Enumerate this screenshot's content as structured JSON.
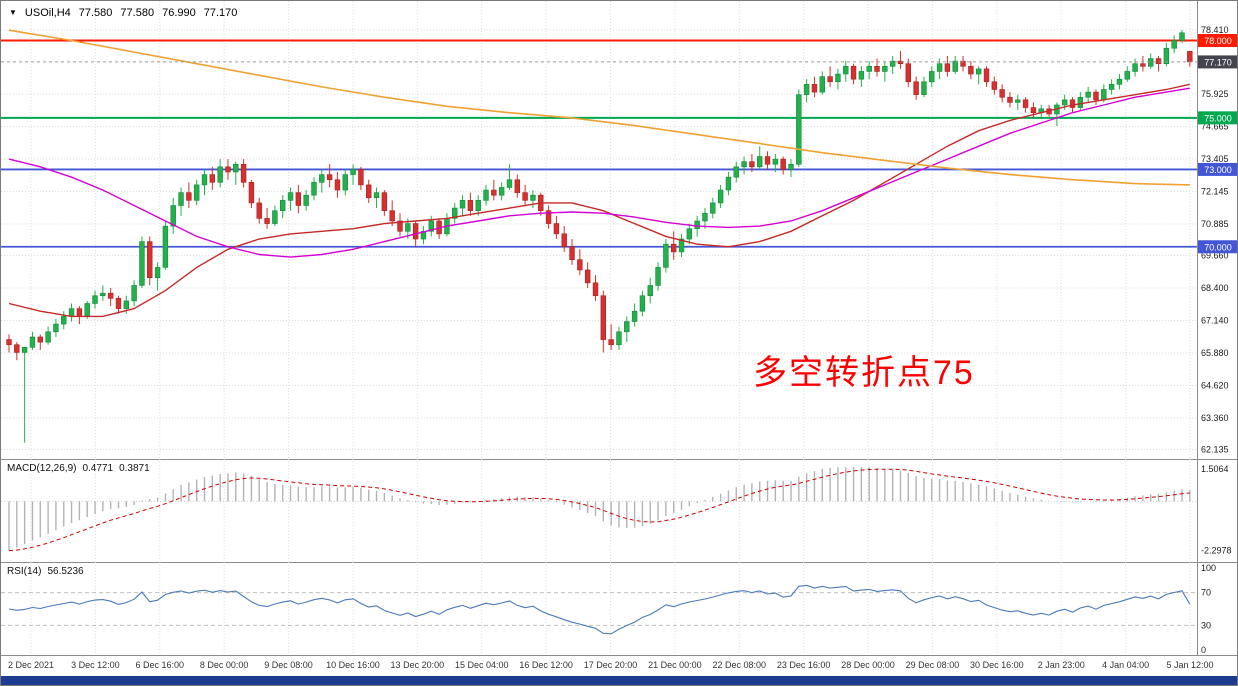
{
  "header": {
    "marker": "▼",
    "symbol_period": "USOil,H4",
    "open": "77.580",
    "high": "77.580",
    "low": "76.990",
    "close": "77.170"
  },
  "panels": {
    "macd": {
      "label": "MACD(12,26,9)",
      "main_value": "0.4771",
      "signal_value": "0.3871"
    },
    "rsi": {
      "label": "RSI(14)",
      "value": "56.5236"
    }
  },
  "axes": {
    "price_ticks": [
      78.41,
      75.925,
      74.665,
      73.405,
      72.145,
      70.885,
      69.66,
      68.4,
      67.14,
      65.88,
      64.62,
      63.36,
      62.135
    ],
    "time_labels": [
      "2 Dec 2021",
      "3 Dec 12:00",
      "6 Dec 16:00",
      "8 Dec 00:00",
      "9 Dec 08:00",
      "10 Dec 16:00",
      "13 Dec 20:00",
      "15 Dec 04:00",
      "16 Dec 12:00",
      "17 Dec 20:00",
      "21 Dec 00:00",
      "22 Dec 08:00",
      "23 Dec 16:00",
      "28 Dec 00:00",
      "29 Dec 08:00",
      "30 Dec 16:00",
      "2 Jan 23:00",
      "4 Jan 04:00",
      "5 Jan 12:00"
    ],
    "macd_ticks": [
      1.5064,
      -2.2978
    ],
    "rsi_ticks": [
      100,
      70,
      30,
      0
    ]
  },
  "chart_data": {
    "type": "candlestick-ohlc",
    "symbol": "USOil",
    "timeframe": "H4",
    "price_range": [
      62.0,
      79.3
    ],
    "up_color": "#25b04c",
    "up_border": "#0e8a3c",
    "down_color": "#d63030",
    "down_border": "#a82020",
    "annotation": {
      "text": "多空转折点75",
      "color": "#ff0000"
    },
    "current_price": {
      "value": 77.17,
      "label": "77.170",
      "badge_color": "#44444e"
    },
    "levels": [
      {
        "value": 78.0,
        "label": "78.000",
        "color": "#ff1a00",
        "width": 2
      },
      {
        "value": 75.0,
        "label": "75.000",
        "color": "#00a84f",
        "width": 2
      },
      {
        "value": 73.0,
        "label": "73.000",
        "color": "#4356d6",
        "width": 1.8
      },
      {
        "value": 70.0,
        "label": "70.000",
        "color": "#4356d6",
        "width": 1.8
      }
    ],
    "macd_hist_color": "#b3b3b3",
    "macd_signal_color": "#cc0000",
    "rsi_color": "#4a7aba",
    "rsi_levels": [
      70,
      30
    ],
    "candles": [
      [
        66.4,
        66.6,
        65.9,
        66.2
      ],
      [
        66.2,
        66.3,
        65.6,
        65.9
      ],
      [
        65.9,
        66.1,
        62.4,
        66.1
      ],
      [
        66.1,
        66.7,
        66.0,
        66.5
      ],
      [
        66.5,
        66.6,
        66.0,
        66.3
      ],
      [
        66.3,
        66.9,
        66.2,
        66.7
      ],
      [
        66.7,
        67.2,
        66.5,
        67.0
      ],
      [
        67.0,
        67.5,
        66.8,
        67.3
      ],
      [
        67.3,
        67.8,
        67.1,
        67.6
      ],
      [
        67.6,
        67.7,
        67.0,
        67.3
      ],
      [
        67.3,
        67.9,
        67.2,
        67.8
      ],
      [
        67.8,
        68.3,
        67.6,
        68.1
      ],
      [
        68.1,
        68.5,
        67.9,
        68.2
      ],
      [
        68.2,
        68.4,
        67.7,
        68.0
      ],
      [
        68.0,
        68.1,
        67.4,
        67.6
      ],
      [
        67.6,
        68.1,
        67.4,
        67.9
      ],
      [
        67.9,
        68.7,
        67.7,
        68.5
      ],
      [
        68.5,
        70.4,
        68.4,
        70.2
      ],
      [
        70.2,
        70.4,
        68.5,
        68.8
      ],
      [
        68.8,
        69.4,
        68.3,
        69.2
      ],
      [
        69.2,
        71.0,
        69.1,
        70.8
      ],
      [
        70.8,
        71.9,
        70.5,
        71.6
      ],
      [
        71.6,
        72.3,
        71.2,
        72.1
      ],
      [
        72.1,
        72.5,
        71.5,
        71.8
      ],
      [
        71.8,
        72.6,
        71.6,
        72.4
      ],
      [
        72.4,
        73.0,
        72.0,
        72.8
      ],
      [
        72.8,
        73.1,
        72.2,
        72.5
      ],
      [
        72.5,
        73.4,
        72.3,
        73.1
      ],
      [
        73.1,
        73.4,
        72.6,
        72.9
      ],
      [
        72.9,
        73.3,
        72.4,
        73.2
      ],
      [
        73.2,
        73.4,
        72.3,
        72.5
      ],
      [
        72.5,
        72.6,
        71.5,
        71.7
      ],
      [
        71.7,
        71.9,
        70.9,
        71.1
      ],
      [
        71.1,
        71.5,
        70.7,
        70.9
      ],
      [
        70.9,
        71.6,
        70.8,
        71.4
      ],
      [
        71.4,
        72.0,
        71.1,
        71.8
      ],
      [
        71.8,
        72.3,
        71.4,
        72.1
      ],
      [
        72.1,
        72.4,
        71.3,
        71.6
      ],
      [
        71.6,
        72.2,
        71.4,
        72.0
      ],
      [
        72.0,
        72.7,
        71.8,
        72.5
      ],
      [
        72.5,
        73.0,
        72.1,
        72.8
      ],
      [
        72.8,
        73.2,
        72.3,
        72.6
      ],
      [
        72.6,
        72.9,
        71.9,
        72.2
      ],
      [
        72.2,
        73.0,
        72.0,
        72.8
      ],
      [
        72.8,
        73.2,
        72.4,
        73.0
      ],
      [
        73.0,
        73.1,
        72.2,
        72.4
      ],
      [
        72.4,
        72.6,
        71.7,
        71.9
      ],
      [
        71.9,
        72.3,
        71.5,
        72.1
      ],
      [
        72.1,
        72.2,
        71.2,
        71.4
      ],
      [
        71.4,
        71.8,
        70.8,
        71.0
      ],
      [
        71.0,
        71.3,
        70.4,
        70.6
      ],
      [
        70.6,
        71.1,
        70.3,
        70.9
      ],
      [
        70.9,
        71.0,
        70.0,
        70.3
      ],
      [
        70.3,
        70.8,
        70.1,
        70.6
      ],
      [
        70.6,
        71.2,
        70.4,
        71.0
      ],
      [
        71.0,
        71.1,
        70.3,
        70.5
      ],
      [
        70.5,
        71.3,
        70.4,
        71.1
      ],
      [
        71.1,
        71.7,
        70.9,
        71.5
      ],
      [
        71.5,
        72.0,
        71.2,
        71.8
      ],
      [
        71.8,
        72.1,
        71.2,
        71.4
      ],
      [
        71.4,
        72.0,
        71.2,
        71.8
      ],
      [
        71.8,
        72.4,
        71.6,
        72.2
      ],
      [
        72.2,
        72.6,
        71.8,
        72.0
      ],
      [
        72.0,
        72.5,
        71.8,
        72.3
      ],
      [
        72.3,
        73.2,
        72.2,
        72.6
      ],
      [
        72.6,
        72.8,
        71.9,
        72.1
      ],
      [
        72.1,
        72.4,
        71.6,
        71.8
      ],
      [
        71.8,
        72.2,
        71.5,
        72.0
      ],
      [
        72.0,
        72.1,
        71.2,
        71.4
      ],
      [
        71.4,
        71.6,
        70.7,
        70.9
      ],
      [
        70.9,
        71.2,
        70.3,
        70.5
      ],
      [
        70.5,
        70.8,
        69.8,
        70.0
      ],
      [
        70.0,
        70.3,
        69.3,
        69.5
      ],
      [
        69.5,
        69.9,
        68.9,
        69.1
      ],
      [
        69.1,
        69.4,
        68.4,
        68.6
      ],
      [
        68.6,
        68.9,
        67.9,
        68.1
      ],
      [
        68.1,
        68.3,
        65.9,
        66.4
      ],
      [
        66.4,
        67.0,
        66.0,
        66.2
      ],
      [
        66.2,
        66.9,
        66.0,
        66.7
      ],
      [
        66.7,
        67.3,
        66.3,
        67.1
      ],
      [
        67.1,
        67.8,
        66.9,
        67.5
      ],
      [
        67.5,
        68.3,
        67.3,
        68.1
      ],
      [
        68.1,
        68.8,
        67.8,
        68.5
      ],
      [
        68.5,
        69.4,
        68.3,
        69.2
      ],
      [
        69.2,
        70.3,
        69.0,
        70.1
      ],
      [
        70.1,
        70.6,
        69.5,
        69.8
      ],
      [
        69.8,
        70.5,
        69.6,
        70.3
      ],
      [
        70.3,
        70.9,
        70.1,
        70.7
      ],
      [
        70.7,
        71.2,
        70.4,
        71.0
      ],
      [
        71.0,
        71.5,
        70.7,
        71.3
      ],
      [
        71.3,
        71.9,
        71.1,
        71.7
      ],
      [
        71.7,
        72.4,
        71.5,
        72.2
      ],
      [
        72.2,
        72.9,
        72.0,
        72.7
      ],
      [
        72.7,
        73.3,
        72.5,
        73.1
      ],
      [
        73.1,
        73.5,
        72.8,
        73.3
      ],
      [
        73.3,
        73.6,
        72.9,
        73.1
      ],
      [
        73.1,
        73.9,
        73.0,
        73.5
      ],
      [
        73.5,
        73.7,
        73.0,
        73.2
      ],
      [
        73.2,
        73.6,
        72.9,
        73.4
      ],
      [
        73.4,
        73.5,
        72.8,
        73.0
      ],
      [
        73.0,
        73.4,
        72.7,
        73.2
      ],
      [
        73.2,
        76.1,
        73.1,
        75.9
      ],
      [
        75.9,
        76.5,
        75.6,
        76.3
      ],
      [
        76.3,
        76.6,
        75.8,
        76.0
      ],
      [
        76.0,
        76.8,
        75.9,
        76.6
      ],
      [
        76.6,
        77.0,
        76.2,
        76.4
      ],
      [
        76.4,
        76.9,
        76.1,
        76.7
      ],
      [
        76.7,
        77.2,
        76.4,
        77.0
      ],
      [
        77.0,
        77.1,
        76.3,
        76.5
      ],
      [
        76.5,
        77.0,
        76.2,
        76.8
      ],
      [
        76.8,
        77.2,
        76.5,
        77.0
      ],
      [
        77.0,
        77.3,
        76.6,
        76.8
      ],
      [
        76.8,
        77.2,
        76.4,
        77.0
      ],
      [
        77.0,
        77.4,
        76.7,
        77.2
      ],
      [
        77.2,
        77.6,
        76.9,
        77.1
      ],
      [
        77.1,
        77.3,
        76.2,
        76.4
      ],
      [
        76.4,
        76.6,
        75.7,
        75.9
      ],
      [
        75.9,
        76.6,
        75.8,
        76.4
      ],
      [
        76.4,
        77.0,
        76.2,
        76.8
      ],
      [
        76.8,
        77.3,
        76.5,
        77.1
      ],
      [
        77.1,
        77.4,
        76.6,
        76.8
      ],
      [
        76.8,
        77.4,
        76.7,
        77.2
      ],
      [
        77.2,
        77.4,
        76.8,
        77.0
      ],
      [
        77.0,
        77.2,
        76.5,
        76.7
      ],
      [
        76.7,
        77.0,
        76.3,
        76.9
      ],
      [
        76.9,
        77.0,
        76.2,
        76.4
      ],
      [
        76.4,
        76.6,
        75.9,
        76.1
      ],
      [
        76.1,
        76.3,
        75.6,
        75.8
      ],
      [
        75.8,
        76.0,
        75.4,
        75.6
      ],
      [
        75.6,
        75.9,
        75.3,
        75.7
      ],
      [
        75.7,
        75.8,
        75.2,
        75.4
      ],
      [
        75.4,
        75.6,
        75.0,
        75.2
      ],
      [
        75.2,
        75.5,
        74.95,
        75.35
      ],
      [
        75.35,
        75.5,
        75.05,
        75.15
      ],
      [
        75.15,
        75.6,
        74.68,
        75.5
      ],
      [
        75.5,
        75.9,
        75.3,
        75.7
      ],
      [
        75.7,
        75.8,
        75.2,
        75.4
      ],
      [
        75.4,
        76.0,
        75.3,
        75.8
      ],
      [
        75.8,
        76.2,
        75.6,
        76.0
      ],
      [
        76.0,
        76.1,
        75.5,
        75.7
      ],
      [
        75.7,
        76.3,
        75.6,
        76.1
      ],
      [
        76.1,
        76.5,
        75.9,
        76.3
      ],
      [
        76.3,
        76.7,
        76.1,
        76.5
      ],
      [
        76.5,
        77.0,
        76.4,
        76.8
      ],
      [
        76.8,
        77.3,
        76.6,
        77.1
      ],
      [
        77.1,
        77.4,
        76.8,
        77.0
      ],
      [
        77.0,
        77.5,
        76.9,
        77.3
      ],
      [
        77.3,
        77.4,
        76.8,
        77.1
      ],
      [
        77.1,
        77.9,
        77.0,
        77.7
      ],
      [
        77.7,
        78.2,
        77.5,
        78.0
      ],
      [
        78.0,
        78.41,
        77.9,
        78.3
      ],
      [
        77.58,
        77.58,
        76.99,
        77.17
      ]
    ],
    "ma_lines": [
      {
        "name": "ma-fast-red",
        "color": "#c62828",
        "width": 1.4,
        "points": [
          [
            0,
            67.8
          ],
          [
            4,
            67.5
          ],
          [
            8,
            67.3
          ],
          [
            12,
            67.3
          ],
          [
            16,
            67.6
          ],
          [
            20,
            68.3
          ],
          [
            24,
            69.2
          ],
          [
            28,
            69.9
          ],
          [
            32,
            70.3
          ],
          [
            36,
            70.5
          ],
          [
            40,
            70.6
          ],
          [
            44,
            70.7
          ],
          [
            48,
            70.9
          ],
          [
            52,
            71.0
          ],
          [
            56,
            71.1
          ],
          [
            60,
            71.3
          ],
          [
            64,
            71.5
          ],
          [
            68,
            71.7
          ],
          [
            72,
            71.7
          ],
          [
            76,
            71.4
          ],
          [
            80,
            70.9
          ],
          [
            84,
            70.4
          ],
          [
            88,
            70.1
          ],
          [
            92,
            70.0
          ],
          [
            96,
            70.2
          ],
          [
            100,
            70.6
          ],
          [
            104,
            71.2
          ],
          [
            108,
            71.8
          ],
          [
            112,
            72.5
          ],
          [
            116,
            73.2
          ],
          [
            120,
            73.9
          ],
          [
            124,
            74.5
          ],
          [
            128,
            74.9
          ],
          [
            132,
            75.2
          ],
          [
            136,
            75.5
          ],
          [
            140,
            75.7
          ],
          [
            144,
            75.9
          ],
          [
            148,
            76.1
          ],
          [
            151,
            76.3
          ]
        ]
      },
      {
        "name": "ma-mid-magenta",
        "color": "#d400d4",
        "width": 1.4,
        "points": [
          [
            0,
            73.4
          ],
          [
            4,
            73.1
          ],
          [
            8,
            72.7
          ],
          [
            12,
            72.2
          ],
          [
            16,
            71.6
          ],
          [
            20,
            71.0
          ],
          [
            24,
            70.4
          ],
          [
            28,
            70.0
          ],
          [
            32,
            69.7
          ],
          [
            36,
            69.6
          ],
          [
            40,
            69.7
          ],
          [
            44,
            69.9
          ],
          [
            48,
            70.2
          ],
          [
            52,
            70.5
          ],
          [
            56,
            70.8
          ],
          [
            60,
            71.0
          ],
          [
            64,
            71.2
          ],
          [
            68,
            71.3
          ],
          [
            72,
            71.35
          ],
          [
            76,
            71.3
          ],
          [
            80,
            71.15
          ],
          [
            84,
            70.95
          ],
          [
            88,
            70.8
          ],
          [
            92,
            70.75
          ],
          [
            96,
            70.8
          ],
          [
            100,
            71.0
          ],
          [
            104,
            71.4
          ],
          [
            108,
            71.9
          ],
          [
            112,
            72.4
          ],
          [
            116,
            72.9
          ],
          [
            120,
            73.4
          ],
          [
            124,
            73.9
          ],
          [
            128,
            74.4
          ],
          [
            132,
            74.8
          ],
          [
            136,
            75.2
          ],
          [
            140,
            75.5
          ],
          [
            144,
            75.8
          ],
          [
            148,
            76.0
          ],
          [
            151,
            76.15
          ]
        ]
      },
      {
        "name": "ma-slow-orange",
        "color": "#efa132",
        "width": 1.6,
        "points": [
          [
            0,
            78.4
          ],
          [
            8,
            78.0
          ],
          [
            16,
            77.55
          ],
          [
            24,
            77.1
          ],
          [
            32,
            76.65
          ],
          [
            40,
            76.2
          ],
          [
            48,
            75.8
          ],
          [
            56,
            75.45
          ],
          [
            64,
            75.2
          ],
          [
            72,
            75.0
          ],
          [
            80,
            74.7
          ],
          [
            88,
            74.35
          ],
          [
            96,
            74.0
          ],
          [
            104,
            73.65
          ],
          [
            112,
            73.35
          ],
          [
            120,
            73.05
          ],
          [
            128,
            72.8
          ],
          [
            136,
            72.6
          ],
          [
            144,
            72.45
          ],
          [
            151,
            72.4
          ]
        ]
      }
    ]
  }
}
